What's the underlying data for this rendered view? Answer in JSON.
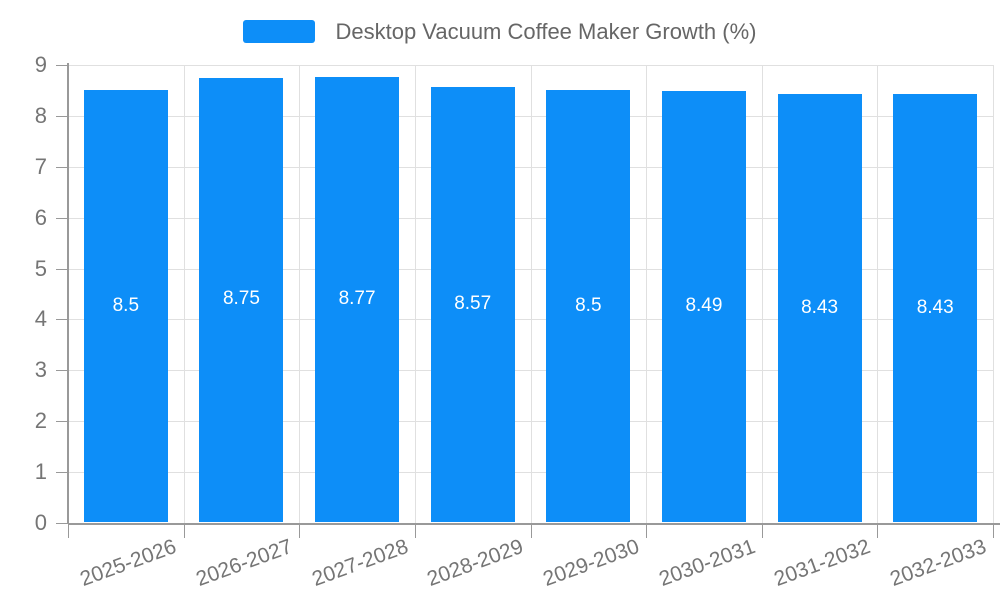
{
  "chart_data": {
    "type": "bar",
    "title": "Desktop Vacuum Coffee Maker Growth (%)",
    "series": [
      {
        "name": "Desktop Vacuum Coffee Maker Growth (%)",
        "values": [
          8.5,
          8.75,
          8.77,
          8.57,
          8.5,
          8.49,
          8.43,
          8.43
        ]
      }
    ],
    "categories": [
      "2025-2026",
      "2026-2027",
      "2027-2028",
      "2028-2029",
      "2029-2030",
      "2030-2031",
      "2031-2032",
      "2032-2033"
    ],
    "bar_labels": [
      "8.5",
      "8.75",
      "8.77",
      "8.57",
      "8.5",
      "8.49",
      "8.43",
      "8.43"
    ],
    "y_ticks": [
      0,
      1,
      2,
      3,
      4,
      5,
      6,
      7,
      8,
      9
    ],
    "ylim": [
      0,
      9
    ],
    "xlabel": "",
    "ylabel": "",
    "grid": true,
    "legend_position": "top",
    "x_label_rotation_deg": -20,
    "colors": {
      "bar": "#0d8ef8",
      "grid": "#e0e0e0",
      "axis": "#999999",
      "tick": "#999999",
      "axis_label": "#757575",
      "legend_text": "#666666",
      "bar_label": "#ffffff",
      "background": "#ffffff"
    }
  }
}
